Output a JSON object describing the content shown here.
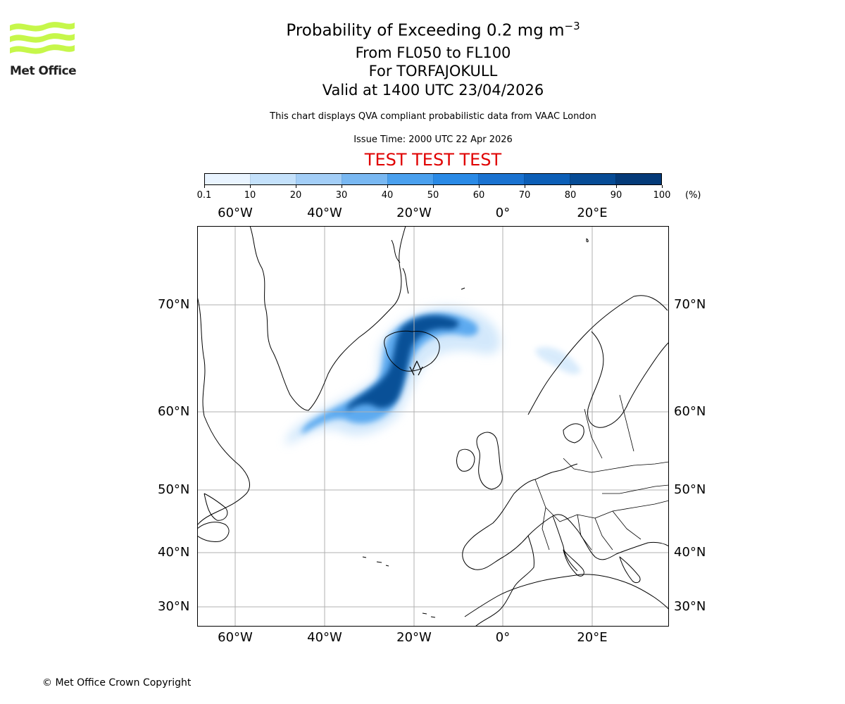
{
  "title": {
    "main_prefix": "Probability of Exceeding 0.2 mg m",
    "main_exponent": "−3",
    "line2": "From FL050 to FL100",
    "line3": "For TORFAJOKULL",
    "line4": "Valid at 1400 UTC 23/04/2026"
  },
  "subtitle": "This chart displays QVA compliant probabilistic data from VAAC London",
  "issue_time": "Issue Time: 2000 UTC 22 Apr 2026",
  "test_banner": "TEST TEST TEST",
  "logo": {
    "text": "Met Office",
    "icon": "met-office-wave-logo",
    "color": "#c6f74a"
  },
  "colorbar": {
    "ticks": [
      "0.1",
      "10",
      "20",
      "30",
      "40",
      "50",
      "60",
      "70",
      "80",
      "90",
      "100"
    ],
    "units": "(%)",
    "colors": [
      "#e9f4ff",
      "#c4e1fb",
      "#a3cef7",
      "#79b8f2",
      "#4aa0ee",
      "#2a8ae6",
      "#1a72d0",
      "#0c5eb6",
      "#064b95",
      "#043a78",
      "#02284f"
    ]
  },
  "map": {
    "lon_labels": [
      "60°W",
      "40°W",
      "20°W",
      "0°",
      "20°E"
    ],
    "lat_labels": [
      "70°N",
      "60°N",
      "50°N",
      "40°N",
      "30°N"
    ],
    "volcano": "TORFAJOKULL"
  },
  "copyright": "© Met Office Crown Copyright"
}
